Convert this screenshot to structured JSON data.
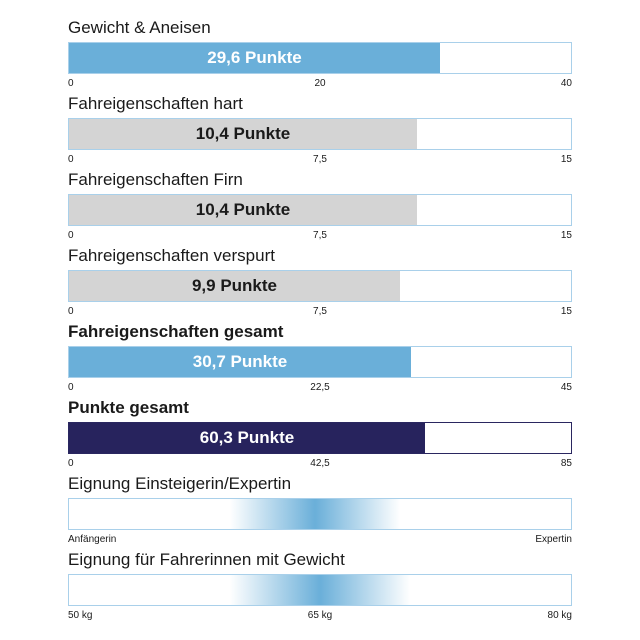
{
  "colors": {
    "blue": "#6aafd9",
    "gray": "#d4d4d4",
    "navy": "#27235d",
    "white_text": "#ffffff",
    "dark_text": "#1a1a1a"
  },
  "chart_data": [
    {
      "type": "bar",
      "title": "Gewicht & Aneisen",
      "value": 29.6,
      "value_label": "29,6 Punkte",
      "max": 40,
      "ticks": [
        "0",
        "20",
        "40"
      ],
      "color": "blue",
      "label_color": "white_text",
      "bold_title": false
    },
    {
      "type": "bar",
      "title": "Fahreigenschaften hart",
      "value": 10.4,
      "value_label": "10,4 Punkte",
      "max": 15,
      "ticks": [
        "0",
        "7,5",
        "15"
      ],
      "color": "gray",
      "label_color": "dark_text",
      "bold_title": false
    },
    {
      "type": "bar",
      "title": "Fahreigenschaften Firn",
      "value": 10.4,
      "value_label": "10,4 Punkte",
      "max": 15,
      "ticks": [
        "0",
        "7,5",
        "15"
      ],
      "color": "gray",
      "label_color": "dark_text",
      "bold_title": false
    },
    {
      "type": "bar",
      "title": "Fahreigenschaften verspurt",
      "value": 9.9,
      "value_label": "9,9 Punkte",
      "max": 15,
      "ticks": [
        "0",
        "7,5",
        "15"
      ],
      "color": "gray",
      "label_color": "dark_text",
      "bold_title": false
    },
    {
      "type": "bar",
      "title": "Fahreigenschaften gesamt",
      "value": 30.7,
      "value_label": "30,7 Punkte",
      "max": 45,
      "ticks": [
        "0",
        "22,5",
        "45"
      ],
      "color": "blue",
      "label_color": "white_text",
      "bold_title": true
    },
    {
      "type": "bar",
      "title": "Punkte gesamt",
      "value": 60.3,
      "value_label": "60,3 Punkte",
      "max": 85,
      "ticks": [
        "0",
        "42,5",
        "85"
      ],
      "color": "navy",
      "label_color": "white_text",
      "bold_title": true
    }
  ],
  "suitability": [
    {
      "title": "Eignung Einsteigerin/Expertin",
      "ticks": [
        "Anfängerin",
        "",
        "Expertin"
      ],
      "gradient_center": 0.49,
      "gradient_width": 0.34
    },
    {
      "title": "Eignung für Fahrerinnen mit Gewicht",
      "ticks": [
        "50 kg",
        "65 kg",
        "80 kg"
      ],
      "gradient_center": 0.5,
      "gradient_width": 0.36
    }
  ]
}
